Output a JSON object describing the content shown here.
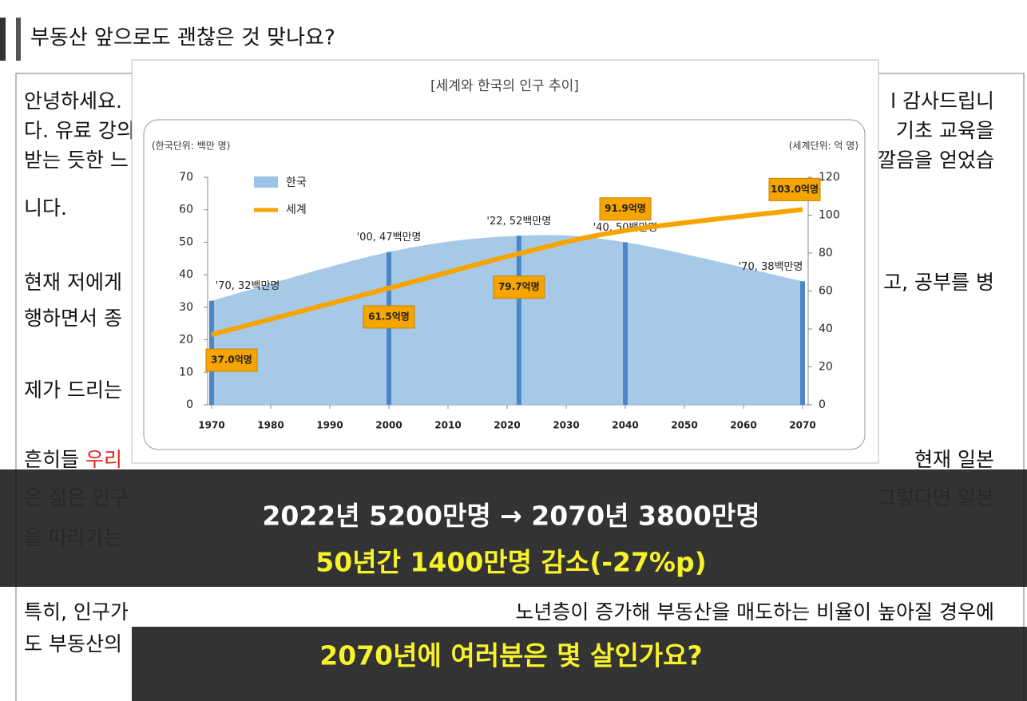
{
  "header": {
    "title": "부동산 앞으로도 괜찮은 것 맞나요?"
  },
  "document": {
    "lines": [
      {
        "left": "안녕하세요.",
        "right": "l 감사드립니"
      },
      {
        "left": "다. 유료 강의",
        "right": "기초 교육을"
      },
      {
        "left": "받는 듯한 느",
        "right": "깔음을 얻었습"
      },
      {
        "left": "니다."
      },
      {
        "left": "현재 저에게",
        "right": "고, 공부를 병"
      },
      {
        "left": "행하면서 종"
      },
      {
        "left": "제가 드리는"
      },
      {
        "left": "흔히들 ",
        "left_red": "우리",
        "right": "현재 일본"
      },
      {
        "left": "은 젊은 인구",
        "right": "그렇다면 일본"
      },
      {
        "left": "을 따라가는"
      },
      {
        "left": "특히, 인구가",
        "right": "노년층이 증가해 부동산을 매도하는 비율이 높아질 경우에"
      },
      {
        "left": "도 부동산의"
      }
    ]
  },
  "subtitles": [
    "2022년 5200만명 → 2070년 3800만명",
    "50년간 1400만명 감소(-27%p)",
    "2070년에 여러분은 몇 살인가요?"
  ],
  "chart_data": {
    "type": "area-line",
    "title": "[세계와 한국의 인구 추이]",
    "y_unit_label": "(한국단위: 백만 명)",
    "y2_unit_label": "(세계단위: 억 명)",
    "x": [
      1970,
      2000,
      2022,
      2040,
      2070
    ],
    "xlim": [
      1970,
      2070
    ],
    "xticks": [
      1970,
      1980,
      1990,
      2000,
      2010,
      2020,
      2030,
      2040,
      2050,
      2060,
      2070
    ],
    "ylim": [
      0,
      70
    ],
    "yticks": [
      0,
      10,
      20,
      30,
      40,
      50,
      60,
      70
    ],
    "y2lim": [
      0,
      120
    ],
    "y2ticks": [
      0,
      20,
      40,
      60,
      80,
      100,
      120
    ],
    "legend": "upper left",
    "series": [
      {
        "name": "한국",
        "color": "#9dc3e6",
        "values": [
          32,
          47,
          52,
          50,
          38
        ],
        "value_labels": [
          "'70, 32백만명",
          "'00, 47백만명",
          "'22, 52백만명",
          "'40, 50백만명",
          "'70, 38백만명"
        ]
      },
      {
        "name": "세계",
        "color": "#f5a400",
        "axis": "y2",
        "values": [
          37.0,
          61.5,
          79.7,
          91.9,
          103.0
        ],
        "value_labels": [
          "37.0억명",
          "61.5억명",
          "79.7억명",
          "91.9억명",
          "103.0억명"
        ]
      }
    ]
  }
}
